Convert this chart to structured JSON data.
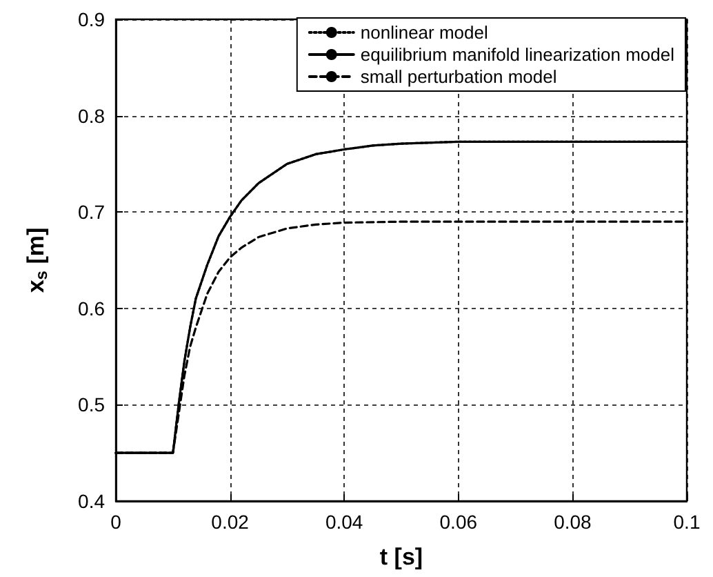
{
  "chart_data": {
    "type": "line",
    "xlabel": "t [s]",
    "ylabel": "x$_{s}$ [m]",
    "xlim": [
      0,
      0.1
    ],
    "xticks": [
      0,
      0.02,
      0.04,
      0.06,
      0.08,
      0.1
    ],
    "ylim": [
      0.4,
      0.9
    ],
    "yticks": [
      0.4,
      0.5,
      0.6,
      0.7,
      0.8,
      0.9
    ],
    "grid": true,
    "legend": "top right",
    "marker": "none",
    "series": [
      {
        "name": "nonlinear model",
        "color": "#000000",
        "line_style": "dotted",
        "x": [
          0,
          0.01,
          0.011,
          0.012,
          0.013,
          0.014,
          0.016,
          0.018,
          0.02,
          0.022,
          0.025,
          0.03,
          0.035,
          0.04,
          0.045,
          0.05,
          0.06,
          0.08,
          0.1
        ],
        "values": [
          0.45,
          0.45,
          0.5,
          0.545,
          0.58,
          0.61,
          0.645,
          0.675,
          0.695,
          0.712,
          0.73,
          0.75,
          0.76,
          0.765,
          0.769,
          0.771,
          0.773,
          0.773,
          0.773
        ]
      },
      {
        "name": "equilibrium manifold linearization model",
        "color": "#000000",
        "line_style": "solid",
        "x": [
          0,
          0.01,
          0.011,
          0.012,
          0.013,
          0.014,
          0.016,
          0.018,
          0.02,
          0.022,
          0.025,
          0.03,
          0.035,
          0.04,
          0.045,
          0.05,
          0.06,
          0.08,
          0.1
        ],
        "values": [
          0.45,
          0.45,
          0.5,
          0.545,
          0.58,
          0.61,
          0.645,
          0.675,
          0.695,
          0.712,
          0.73,
          0.75,
          0.76,
          0.765,
          0.769,
          0.771,
          0.773,
          0.773,
          0.773
        ]
      },
      {
        "name": "small perturbation model",
        "color": "#000000",
        "line_style": "dashed",
        "x": [
          0,
          0.01,
          0.011,
          0.012,
          0.013,
          0.014,
          0.016,
          0.018,
          0.02,
          0.022,
          0.025,
          0.03,
          0.035,
          0.04,
          0.05,
          0.06,
          0.1
        ],
        "values": [
          0.45,
          0.45,
          0.49,
          0.53,
          0.56,
          0.58,
          0.615,
          0.638,
          0.653,
          0.663,
          0.674,
          0.683,
          0.687,
          0.689,
          0.69,
          0.69,
          0.69
        ]
      }
    ]
  }
}
